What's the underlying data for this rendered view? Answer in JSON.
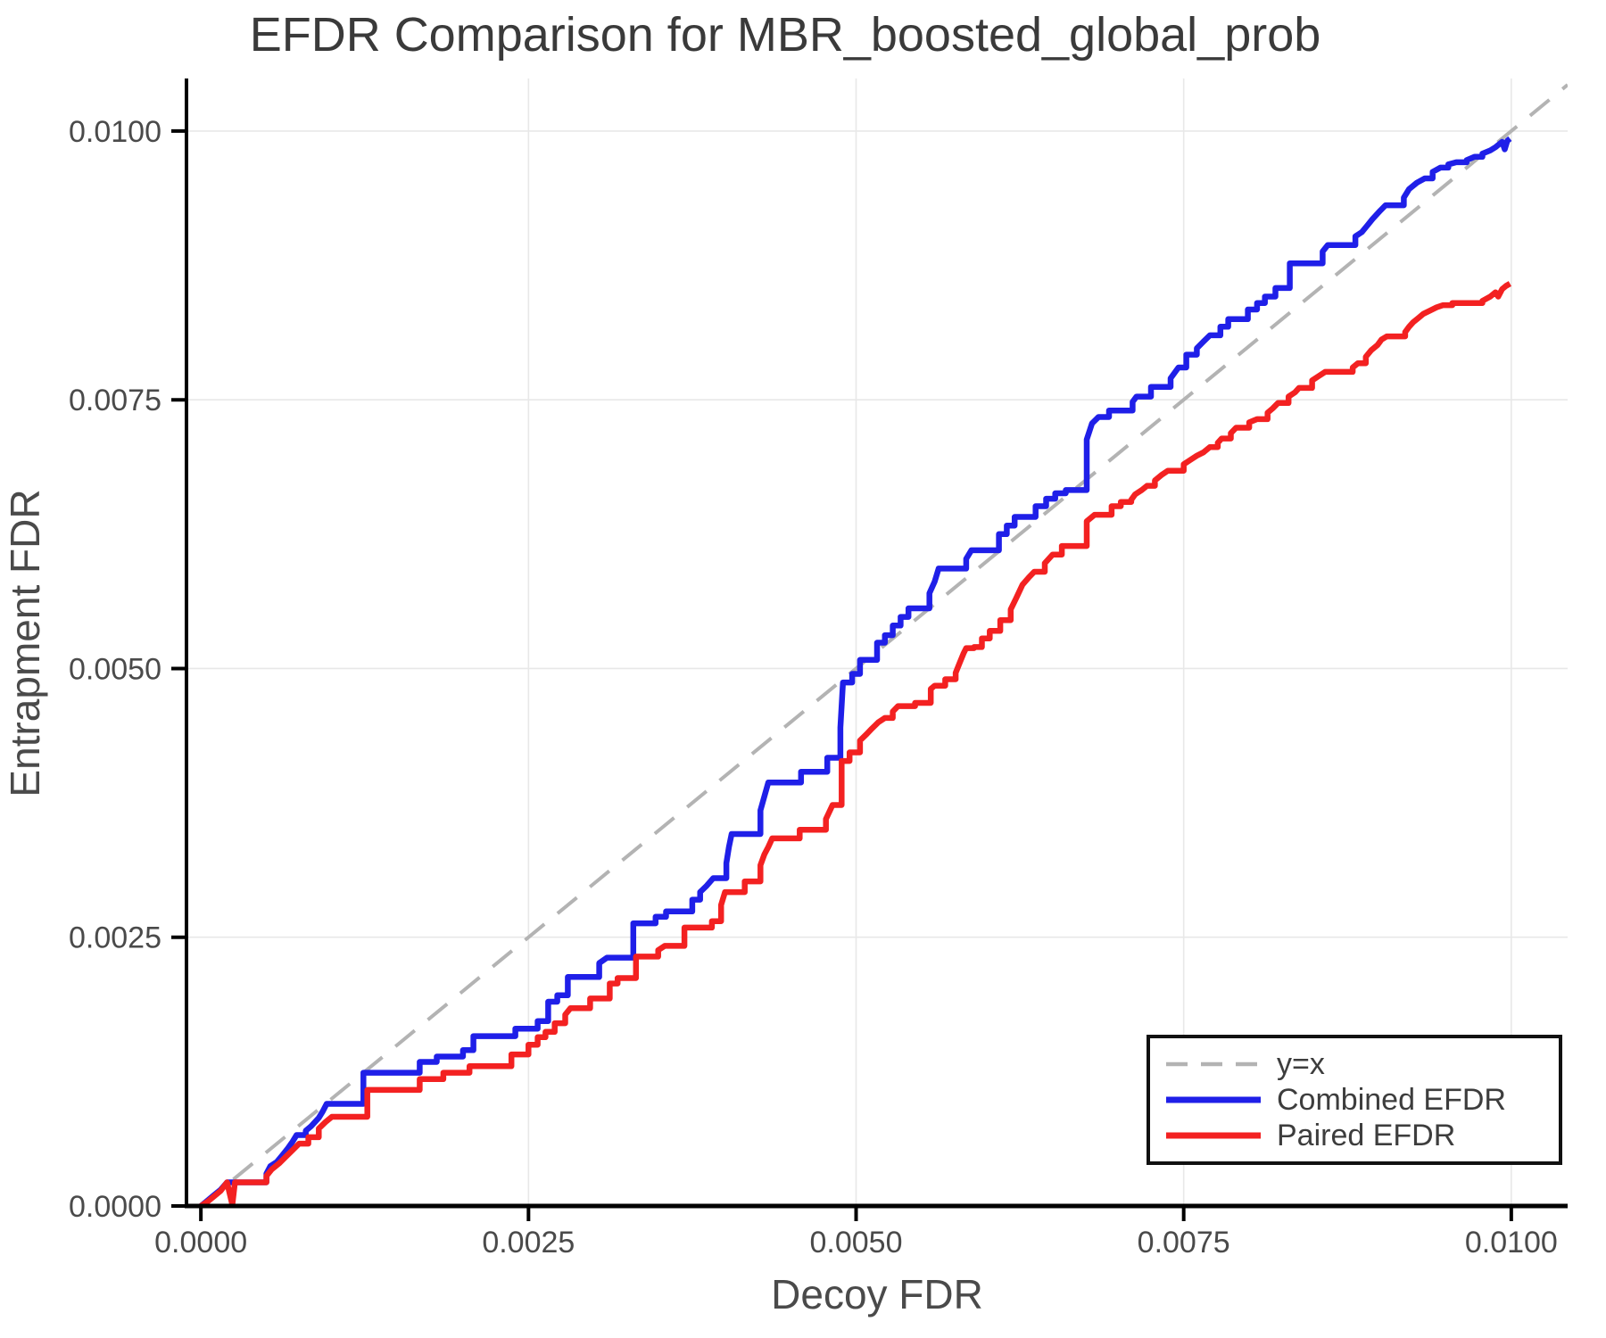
{
  "title": "EFDR Comparison for MBR_boosted_global_prob",
  "chart_data": {
    "type": "line",
    "title": "EFDR Comparison for MBR_boosted_global_prob",
    "xlabel": "Decoy FDR",
    "ylabel": "Entrapment FDR",
    "xlim": [
      -0.00011,
      0.01043
    ],
    "ylim": [
      0,
      0.010489
    ],
    "grid": true,
    "background": "#ffffff",
    "axis_color": "#000000",
    "grid_color": "#e8e8e8",
    "xticks": {
      "values": [
        0,
        0.0025,
        0.005,
        0.0075,
        0.01
      ],
      "labels": [
        "0.0000",
        "0.0025",
        "0.0050",
        "0.0075",
        "0.0100"
      ]
    },
    "yticks": {
      "values": [
        0,
        0.0025,
        0.005,
        0.0075,
        0.01
      ],
      "labels": [
        "0.0000",
        "0.0025",
        "0.0050",
        "0.0075",
        "0.0100"
      ]
    },
    "legend": {
      "position": "lower-right",
      "entries": [
        {
          "label": "y=x",
          "color": "#b3b3b3",
          "dash": true
        },
        {
          "label": "Combined EFDR",
          "color": "#1f1fe8",
          "dash": false
        },
        {
          "label": "Paired EFDR",
          "color": "#f32121",
          "dash": false
        }
      ]
    },
    "series": [
      {
        "name": "y=x",
        "color": "#b3b3b3",
        "dash": true,
        "width": 4,
        "step": false,
        "points": [
          [
            0,
            0
          ],
          [
            0.01043,
            0.01043
          ]
        ]
      },
      {
        "name": "Combined EFDR",
        "color": "#1f1fe8",
        "dash": false,
        "width": 6.5,
        "step": true,
        "points": [
          [
            0,
            0
          ],
          [
            5e-05,
            5e-05
          ],
          [
            0.0001,
            0.0001
          ],
          [
            0.00015,
            0.00015
          ],
          [
            0.0002,
            0.00022
          ],
          [
            0.0005,
            0.0003
          ],
          [
            0.00053,
            0.00037
          ],
          [
            0.00058,
            0.00041
          ],
          [
            0.00062,
            0.00047
          ],
          [
            0.00066,
            0.00053
          ],
          [
            0.0007,
            0.0006
          ],
          [
            0.00073,
            0.00066
          ],
          [
            0.0008,
            0.0007
          ],
          [
            0.00084,
            0.00074
          ],
          [
            0.0009,
            0.00082
          ],
          [
            0.00093,
            0.00088
          ],
          [
            0.00096,
            0.00095
          ],
          [
            0.00124,
            0.00124
          ],
          [
            0.00167,
            0.00134
          ],
          [
            0.0018,
            0.00139
          ],
          [
            0.002,
            0.00145
          ],
          [
            0.00208,
            0.00158
          ],
          [
            0.0024,
            0.00165
          ],
          [
            0.00257,
            0.00172
          ],
          [
            0.00265,
            0.0019
          ],
          [
            0.00272,
            0.00196
          ],
          [
            0.0028,
            0.00213
          ],
          [
            0.00304,
            0.00226
          ],
          [
            0.0031,
            0.00231
          ],
          [
            0.0033,
            0.00263
          ],
          [
            0.00347,
            0.00269
          ],
          [
            0.00355,
            0.00274
          ],
          [
            0.00375,
            0.00285
          ],
          [
            0.00381,
            0.00292
          ],
          [
            0.00386,
            0.00298
          ],
          [
            0.00391,
            0.00305
          ],
          [
            0.00401,
            0.00319
          ],
          [
            0.00403,
            0.00334
          ],
          [
            0.00405,
            0.00346
          ],
          [
            0.00427,
            0.00368
          ],
          [
            0.00433,
            0.00394
          ],
          [
            0.00458,
            0.00404
          ],
          [
            0.00478,
            0.00417
          ],
          [
            0.00488,
            0.00445
          ],
          [
            0.0049,
            0.00487
          ],
          [
            0.00497,
            0.00495
          ],
          [
            0.00503,
            0.00508
          ],
          [
            0.00516,
            0.00524
          ],
          [
            0.00522,
            0.00531
          ],
          [
            0.00528,
            0.0054
          ],
          [
            0.00534,
            0.00548
          ],
          [
            0.0054,
            0.00556
          ],
          [
            0.00556,
            0.0057
          ],
          [
            0.0056,
            0.00581
          ],
          [
            0.00563,
            0.00593
          ],
          [
            0.00584,
            0.00602
          ],
          [
            0.00588,
            0.0061
          ],
          [
            0.00609,
            0.00625
          ],
          [
            0.00615,
            0.00633
          ],
          [
            0.00621,
            0.00641
          ],
          [
            0.00637,
            0.00651
          ],
          [
            0.00645,
            0.00658
          ],
          [
            0.00652,
            0.00663
          ],
          [
            0.0066,
            0.00666
          ],
          [
            0.00676,
            0.00713
          ],
          [
            0.0068,
            0.00728
          ],
          [
            0.00685,
            0.00734
          ],
          [
            0.00693,
            0.0074
          ],
          [
            0.00711,
            0.00748
          ],
          [
            0.00714,
            0.00753
          ],
          [
            0.00725,
            0.00762
          ],
          [
            0.0074,
            0.0077
          ],
          [
            0.00746,
            0.0078
          ],
          [
            0.00752,
            0.00792
          ],
          [
            0.0076,
            0.00798
          ],
          [
            0.00765,
            0.00804
          ],
          [
            0.0077,
            0.0081
          ],
          [
            0.00778,
            0.00818
          ],
          [
            0.00784,
            0.00825
          ],
          [
            0.00799,
            0.00834
          ],
          [
            0.00806,
            0.0084
          ],
          [
            0.00812,
            0.00846
          ],
          [
            0.0082,
            0.00854
          ],
          [
            0.00831,
            0.00877
          ],
          [
            0.00856,
            0.00888
          ],
          [
            0.0086,
            0.00894
          ],
          [
            0.00881,
            0.00902
          ],
          [
            0.00886,
            0.00906
          ],
          [
            0.0089,
            0.00912
          ],
          [
            0.00894,
            0.00918
          ],
          [
            0.009,
            0.00926
          ],
          [
            0.00904,
            0.00931
          ],
          [
            0.00918,
            0.00938
          ],
          [
            0.00922,
            0.00946
          ],
          [
            0.00928,
            0.00952
          ],
          [
            0.00934,
            0.00956
          ],
          [
            0.0094,
            0.00962
          ],
          [
            0.00946,
            0.00966
          ],
          [
            0.00952,
            0.00969
          ],
          [
            0.00958,
            0.00971
          ],
          [
            0.00966,
            0.00973
          ],
          [
            0.00972,
            0.00976
          ],
          [
            0.00978,
            0.00979
          ],
          [
            0.00984,
            0.00982
          ],
          [
            0.00988,
            0.00985
          ],
          [
            0.00991,
            0.00988
          ],
          [
            0.00993,
            0.0099
          ],
          [
            0.00995,
            0.00983
          ],
          [
            0.00997,
            0.00991
          ],
          [
            0.00999,
            0.00993
          ]
        ]
      },
      {
        "name": "Paired EFDR",
        "color": "#f32121",
        "dash": false,
        "width": 6.5,
        "step": true,
        "points": [
          [
            0,
            0
          ],
          [
            5e-05,
            4e-05
          ],
          [
            0.0001,
            9e-05
          ],
          [
            0.00015,
            0.00014
          ],
          [
            0.0002,
            0.00022
          ],
          [
            0.00024,
            1e-05
          ],
          [
            0.00026,
            0.00022
          ],
          [
            0.0005,
            0.00028
          ],
          [
            0.00054,
            0.00034
          ],
          [
            0.0006,
            0.0004
          ],
          [
            0.00065,
            0.00046
          ],
          [
            0.0007,
            0.00052
          ],
          [
            0.00075,
            0.00058
          ],
          [
            0.00082,
            0.00064
          ],
          [
            0.0009,
            0.00072
          ],
          [
            0.00095,
            0.00078
          ],
          [
            0.001,
            0.00083
          ],
          [
            0.00127,
            0.00108
          ],
          [
            0.00167,
            0.00118
          ],
          [
            0.00185,
            0.00124
          ],
          [
            0.00205,
            0.0013
          ],
          [
            0.00237,
            0.00141
          ],
          [
            0.0025,
            0.0015
          ],
          [
            0.00257,
            0.00157
          ],
          [
            0.00263,
            0.00162
          ],
          [
            0.0027,
            0.0017
          ],
          [
            0.00278,
            0.00178
          ],
          [
            0.00282,
            0.00184
          ],
          [
            0.00297,
            0.00193
          ],
          [
            0.00312,
            0.00207
          ],
          [
            0.00318,
            0.00212
          ],
          [
            0.00332,
            0.00232
          ],
          [
            0.00349,
            0.00238
          ],
          [
            0.00354,
            0.00242
          ],
          [
            0.00369,
            0.00259
          ],
          [
            0.0039,
            0.00265
          ],
          [
            0.00397,
            0.0028
          ],
          [
            0.004,
            0.00292
          ],
          [
            0.00415,
            0.00302
          ],
          [
            0.00427,
            0.00317
          ],
          [
            0.0043,
            0.00327
          ],
          [
            0.00433,
            0.00334
          ],
          [
            0.00436,
            0.00342
          ],
          [
            0.00457,
            0.0035
          ],
          [
            0.00477,
            0.0036
          ],
          [
            0.00482,
            0.00373
          ],
          [
            0.00489,
            0.00414
          ],
          [
            0.00495,
            0.00422
          ],
          [
            0.00503,
            0.00433
          ],
          [
            0.00508,
            0.00439
          ],
          [
            0.00512,
            0.00444
          ],
          [
            0.00517,
            0.0045
          ],
          [
            0.00522,
            0.00454
          ],
          [
            0.00528,
            0.0046
          ],
          [
            0.00532,
            0.00465
          ],
          [
            0.00545,
            0.00468
          ],
          [
            0.00557,
            0.00481
          ],
          [
            0.0056,
            0.00484
          ],
          [
            0.00568,
            0.0049
          ],
          [
            0.00576,
            0.00496
          ],
          [
            0.00579,
            0.00505
          ],
          [
            0.00582,
            0.00514
          ],
          [
            0.00584,
            0.00519
          ],
          [
            0.0059,
            0.0052
          ],
          [
            0.00596,
            0.00528
          ],
          [
            0.00602,
            0.00535
          ],
          [
            0.0061,
            0.00545
          ],
          [
            0.00618,
            0.00555
          ],
          [
            0.00622,
            0.00565
          ],
          [
            0.00627,
            0.00578
          ],
          [
            0.00632,
            0.00585
          ],
          [
            0.00636,
            0.0059
          ],
          [
            0.00644,
            0.00598
          ],
          [
            0.0065,
            0.00606
          ],
          [
            0.00657,
            0.00614
          ],
          [
            0.00676,
            0.00637
          ],
          [
            0.00682,
            0.00643
          ],
          [
            0.00695,
            0.00651
          ],
          [
            0.00702,
            0.00655
          ],
          [
            0.0071,
            0.00657
          ],
          [
            0.00713,
            0.00662
          ],
          [
            0.00718,
            0.00666
          ],
          [
            0.00722,
            0.0067
          ],
          [
            0.00728,
            0.00675
          ],
          [
            0.00733,
            0.0068
          ],
          [
            0.00738,
            0.00684
          ],
          [
            0.0075,
            0.0069
          ],
          [
            0.00755,
            0.00694
          ],
          [
            0.0076,
            0.00698
          ],
          [
            0.00765,
            0.00701
          ],
          [
            0.0077,
            0.00706
          ],
          [
            0.00776,
            0.0071
          ],
          [
            0.00779,
            0.00714
          ],
          [
            0.00786,
            0.00719
          ],
          [
            0.0079,
            0.00724
          ],
          [
            0.008,
            0.00729
          ],
          [
            0.00806,
            0.00732
          ],
          [
            0.00814,
            0.00738
          ],
          [
            0.00818,
            0.00742
          ],
          [
            0.00822,
            0.00747
          ],
          [
            0.0083,
            0.00753
          ],
          [
            0.00835,
            0.00757
          ],
          [
            0.00838,
            0.00761
          ],
          [
            0.00848,
            0.00768
          ],
          [
            0.00853,
            0.00772
          ],
          [
            0.00858,
            0.00776
          ],
          [
            0.00879,
            0.0078
          ],
          [
            0.00883,
            0.00784
          ],
          [
            0.00889,
            0.0079
          ],
          [
            0.00893,
            0.00796
          ],
          [
            0.00898,
            0.00801
          ],
          [
            0.00901,
            0.00806
          ],
          [
            0.00905,
            0.00809
          ],
          [
            0.00919,
            0.00813
          ],
          [
            0.00922,
            0.00818
          ],
          [
            0.00925,
            0.00822
          ],
          [
            0.00929,
            0.00826
          ],
          [
            0.00933,
            0.0083
          ],
          [
            0.00938,
            0.00833
          ],
          [
            0.00943,
            0.00836
          ],
          [
            0.00948,
            0.00838
          ],
          [
            0.00955,
            0.0084
          ],
          [
            0.00978,
            0.00842
          ],
          [
            0.00984,
            0.00846
          ],
          [
            0.00988,
            0.0085
          ],
          [
            0.0099,
            0.00846
          ],
          [
            0.00993,
            0.00853
          ],
          [
            0.00996,
            0.00856
          ],
          [
            0.00999,
            0.00858
          ]
        ]
      }
    ]
  }
}
